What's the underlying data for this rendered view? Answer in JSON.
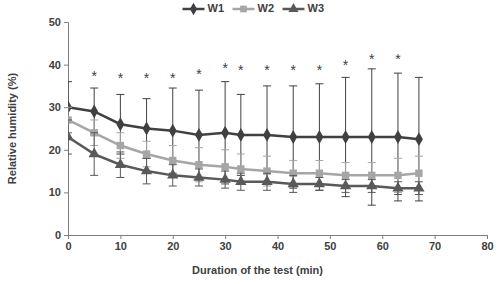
{
  "chart_data": {
    "type": "line",
    "x_label": "Duration of the test (min)",
    "y_label": "Relative humidity (%)",
    "x": [
      0,
      5,
      10,
      15,
      20,
      25,
      30,
      33,
      38,
      43,
      48,
      53,
      58,
      63,
      67
    ],
    "series": [
      {
        "name": "W1",
        "color": "#404040",
        "marker": "diamond",
        "line_style": "solid",
        "values": [
          30,
          29,
          26,
          25,
          24.5,
          23.5,
          24,
          23.5,
          23.5,
          23,
          23,
          23,
          23,
          23,
          22.5
        ],
        "errors": [
          6,
          5.5,
          7,
          7,
          10,
          10.5,
          12,
          9.5,
          11.5,
          12,
          12.5,
          14,
          16,
          15,
          14.5
        ]
      },
      {
        "name": "W2",
        "color": "#a6a6a6",
        "marker": "square",
        "line_style": "solid",
        "values": [
          27,
          24,
          21,
          19,
          17.5,
          16.5,
          16,
          15.5,
          15,
          14.5,
          14.5,
          14,
          14,
          14,
          14.5
        ],
        "errors": [
          3,
          3,
          3,
          3,
          3.5,
          4,
          4,
          3.5,
          3.5,
          3,
          3,
          3,
          3,
          4,
          4
        ]
      },
      {
        "name": "W3",
        "color": "#595959",
        "marker": "triangle",
        "line_style": "solid",
        "values": [
          23,
          19,
          16.5,
          15,
          14,
          13.5,
          13,
          12.5,
          12.5,
          12,
          12,
          11.5,
          11.5,
          11,
          11
        ],
        "errors": [
          4,
          5,
          3,
          3,
          2.5,
          2,
          2,
          2,
          2,
          2,
          1.5,
          1.5,
          1.5,
          1.5,
          1.5
        ]
      }
    ],
    "annotations": [
      {
        "x": 5,
        "y": 37,
        "text": "*"
      },
      {
        "x": 10,
        "y": 36.5,
        "text": "*"
      },
      {
        "x": 15,
        "y": 36.5,
        "text": "*"
      },
      {
        "x": 20,
        "y": 36.5,
        "text": "*"
      },
      {
        "x": 25,
        "y": 37.5,
        "text": "*"
      },
      {
        "x": 30,
        "y": 39,
        "text": "*"
      },
      {
        "x": 33,
        "y": 38.5,
        "text": "*"
      },
      {
        "x": 38,
        "y": 38.5,
        "text": "*"
      },
      {
        "x": 43,
        "y": 38.5,
        "text": "*"
      },
      {
        "x": 48,
        "y": 38.5,
        "text": "*"
      },
      {
        "x": 53,
        "y": 39.5,
        "text": "*"
      },
      {
        "x": 58,
        "y": 41,
        "text": "*"
      },
      {
        "x": 63,
        "y": 41,
        "text": "*"
      }
    ],
    "xlim": [
      0,
      80
    ],
    "xticks": [
      0,
      10,
      20,
      30,
      40,
      50,
      60,
      70,
      80
    ],
    "ylim": [
      0,
      50
    ],
    "yticks": [
      0,
      10,
      20,
      30,
      40,
      50
    ],
    "grid": false,
    "legend": "top"
  }
}
